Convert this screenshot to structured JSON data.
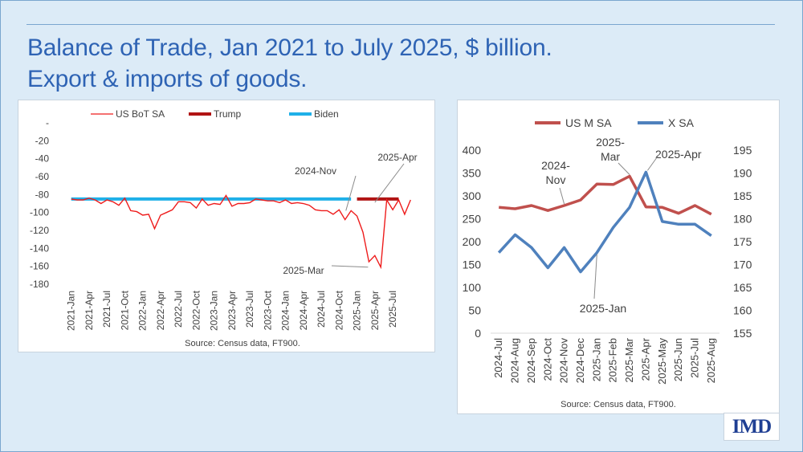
{
  "slide": {
    "title_line1": "Balance of Trade, Jan 2021 to July 2025, $ billion.",
    "title_line2": "Export & imports of goods.",
    "logo": "IMD",
    "colors": {
      "background": "#dcebf7",
      "title": "#2e63b4"
    }
  },
  "chart_data": [
    {
      "type": "line",
      "title": "",
      "source": "Source: Census data, FT900.",
      "ylim": [
        -180,
        0
      ],
      "y_ticks": [
        0,
        -20,
        -40,
        -60,
        -80,
        -100,
        -120,
        -140,
        -160,
        -180
      ],
      "y_tick_labels": [
        "-",
        "-20",
        "-40",
        "-60",
        "-80",
        "-100",
        "-120",
        "-140",
        "-160",
        "-180"
      ],
      "x_tick_labels": [
        "2021-Jan",
        "2021-Apr",
        "2021-Jul",
        "2021-Oct",
        "2022-Jan",
        "2022-Apr",
        "2022-Jul",
        "2022-Oct",
        "2023-Jan",
        "2023-Apr",
        "2023-Jul",
        "2023-Oct",
        "2024-Jan",
        "2024-Apr",
        "2024-Jul",
        "2024-Oct",
        "2025-Jan",
        "2025-Apr",
        "2025-Jul"
      ],
      "grid": false,
      "legend_position": "top",
      "series": [
        {
          "name": "US BoT SA",
          "color": "#ee1c1c",
          "values": [
            -85,
            -86,
            -86,
            -84,
            -86,
            -90,
            -86,
            -88,
            -92,
            -84,
            -98,
            -99,
            -103,
            -102,
            -118,
            -103,
            -100,
            -97,
            -88,
            -88,
            -89,
            -95,
            -85,
            -92,
            -90,
            -91,
            -81,
            -93,
            -90,
            -90,
            -89,
            -85,
            -86,
            -87,
            -87,
            -89,
            -86,
            -90,
            -89,
            -90,
            -92,
            -97,
            -98,
            -98,
            -102,
            -97,
            -108,
            -98,
            -104,
            -122,
            -155,
            -148,
            -161,
            -86,
            -97,
            -86,
            -102,
            -86
          ]
        },
        {
          "name": "Trump",
          "color": "#b11414",
          "x_range": [
            "2025-Jan",
            "2025-Aug"
          ],
          "value": -85
        },
        {
          "name": "Biden",
          "color": "#1fb0e8",
          "x_range": [
            "2021-Jan",
            "2024-Dec"
          ],
          "value": -85
        }
      ],
      "annotations": [
        {
          "text": "2024-Nov",
          "x": "2024-Nov",
          "y": -98
        },
        {
          "text": "2025-Apr",
          "x": "2025-Apr",
          "y": -86
        },
        {
          "text": "2025-Mar",
          "x": "2025-Mar",
          "y": -161
        }
      ]
    },
    {
      "type": "line",
      "title": "",
      "source": "Source: Census data, FT900.",
      "categories": [
        "2024-Jul",
        "2024-Aug",
        "2024-Sep",
        "2024-Oct",
        "2024-Nov",
        "2024-Dec",
        "2025-Jan",
        "2025-Feb",
        "2025-Mar",
        "2025-Apr",
        "2025-May",
        "2025-Jun",
        "2025-Jul",
        "2025-Aug"
      ],
      "y_left_lim": [
        0,
        400
      ],
      "y_left_ticks": [
        0,
        50,
        100,
        150,
        200,
        250,
        300,
        350,
        400
      ],
      "y_right_lim": [
        155,
        195
      ],
      "y_right_ticks": [
        155,
        160,
        165,
        170,
        175,
        180,
        185,
        190,
        195
      ],
      "grid": false,
      "legend_position": "top",
      "series": [
        {
          "name": "US M SA",
          "axis": "left",
          "color": "#c0504d",
          "values": [
            275,
            272,
            279,
            268,
            279,
            291,
            326,
            325,
            343,
            276,
            275,
            262,
            279,
            260
          ]
        },
        {
          "name": "X SA",
          "axis": "right",
          "color": "#4f81bd",
          "values": [
            172.6,
            176.5,
            173.7,
            169.3,
            173.7,
            168.4,
            172.6,
            178.1,
            182.5,
            190.2,
            179.4,
            178.8,
            178.8,
            176.3
          ]
        }
      ],
      "annotations": [
        {
          "text": "2024-\nNov",
          "x": "2024-Nov",
          "series": "US M SA"
        },
        {
          "text": "2025-\nMar",
          "x": "2025-Mar",
          "series": "US M SA"
        },
        {
          "text": "2025-Apr",
          "x": "2025-Apr",
          "series": "X SA"
        },
        {
          "text": "2025-Jan",
          "x": "2025-Jan",
          "series": "X SA"
        }
      ]
    }
  ]
}
